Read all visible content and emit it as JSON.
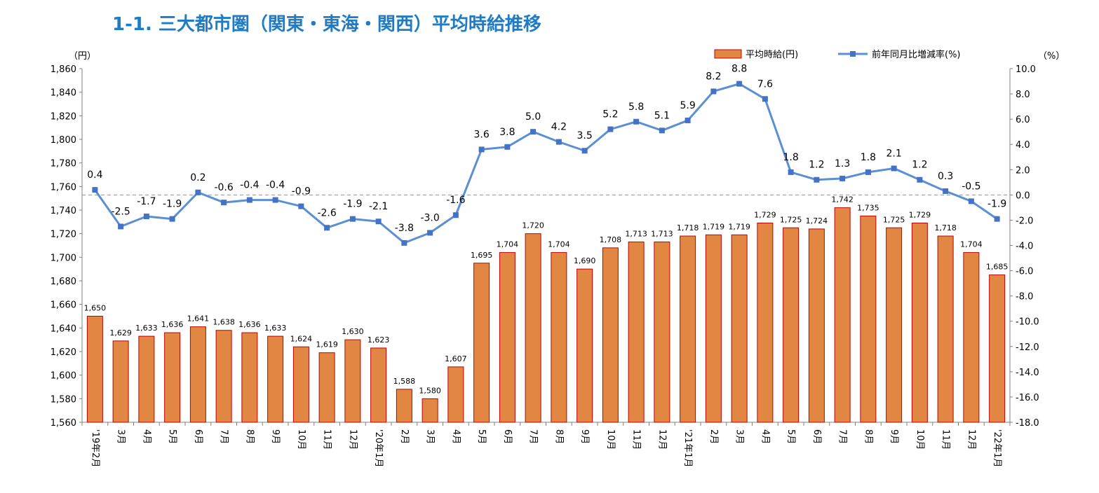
{
  "title": "1-1. 三大都市圏（関東・東海・関西）平均時給推移",
  "chart_data": {
    "type": "bar",
    "title": "1-1. 三大都市圏（関東・東海・関西）平均時給推移",
    "categories": [
      "'19年2月",
      "3月",
      "4月",
      "5月",
      "6月",
      "7月",
      "8月",
      "9月",
      "10月",
      "11月",
      "12月",
      "'20年1月",
      "2月",
      "3月",
      "4月",
      "5月",
      "6月",
      "7月",
      "8月",
      "9月",
      "10月",
      "11月",
      "12月",
      "'21年1月",
      "2月",
      "3月",
      "4月",
      "5月",
      "6月",
      "7月",
      "8月",
      "9月",
      "10月",
      "11月",
      "12月",
      "'22年1月"
    ],
    "series": [
      {
        "name": "平均時給(円)",
        "type": "bar",
        "axis": "left",
        "color": "#e28743",
        "values": [
          1650,
          1629,
          1633,
          1636,
          1641,
          1638,
          1636,
          1633,
          1624,
          1619,
          1630,
          1623,
          1588,
          1580,
          1607,
          1695,
          1704,
          1720,
          1704,
          1690,
          1708,
          1713,
          1713,
          1718,
          1719,
          1719,
          1729,
          1725,
          1724,
          1742,
          1735,
          1725,
          1729,
          1718,
          1704,
          1685
        ]
      },
      {
        "name": "前年同月比増減率(%)",
        "type": "line",
        "axis": "right",
        "color": "#5b8fd4",
        "values": [
          0.4,
          -2.5,
          -1.7,
          -1.9,
          0.2,
          -0.6,
          -0.4,
          -0.4,
          -0.9,
          -2.6,
          -1.9,
          -2.1,
          -3.8,
          -3.0,
          -1.6,
          3.6,
          3.8,
          5.0,
          4.2,
          3.5,
          5.2,
          5.8,
          5.1,
          5.9,
          8.2,
          8.8,
          7.6,
          1.8,
          1.2,
          1.3,
          1.8,
          2.1,
          1.2,
          0.3,
          -0.5,
          -1.9
        ]
      }
    ],
    "ylabel_left": "（円）",
    "ylabel_right": "（%）",
    "ylim_left": [
      1560,
      1860
    ],
    "ylim_right": [
      -18,
      10
    ],
    "yticks_left": [
      "1,560",
      "1,580",
      "1,600",
      "1,620",
      "1,640",
      "1,660",
      "1,680",
      "1,700",
      "1,720",
      "1,740",
      "1,760",
      "1,780",
      "1,800",
      "1,820",
      "1,840",
      "1,860"
    ],
    "yticks_right": [
      "-18.0",
      "-16.0",
      "-14.0",
      "-12.0",
      "-10.0",
      "-8.0",
      "-6.0",
      "-4.0",
      "-2.0",
      "0.0",
      "2.0",
      "4.0",
      "6.0",
      "8.0",
      "10.0"
    ],
    "bar_labels": [
      "1,650",
      "1,629",
      "1,633",
      "1,636",
      "1,641",
      "1,638",
      "1,636",
      "1,633",
      "1,624",
      "1,619",
      "1,630",
      "1,623",
      "1,588",
      "1,580",
      "1,607",
      "1,695",
      "1,704",
      "1,720",
      "1,704",
      "1,690",
      "1,708",
      "1,713",
      "1,713",
      "1,718",
      "1,719",
      "1,719",
      "1,729",
      "1,725",
      "1,724",
      "1,742",
      "1,735",
      "1,725",
      "1,729",
      "1,718",
      "1,704",
      "1,685"
    ],
    "line_labels": [
      "0.4",
      "-2.5",
      "-1.7",
      "-1.9",
      "0.2",
      "-0.6",
      "-0.4",
      "-0.4",
      "-0.9",
      "-2.6",
      "-1.9",
      "-2.1",
      "-3.8",
      "-3.0",
      "-1.6",
      "3.6",
      "3.8",
      "5.0",
      "4.2",
      "3.5",
      "5.2",
      "5.8",
      "5.1",
      "5.9",
      "8.2",
      "8.8",
      "7.6",
      "1.8",
      "1.2",
      "1.3",
      "1.8",
      "2.1",
      "1.2",
      "0.3",
      "-0.5",
      "-1.9"
    ],
    "legend_position": "top-right",
    "reference_line": 0,
    "grid": false
  }
}
